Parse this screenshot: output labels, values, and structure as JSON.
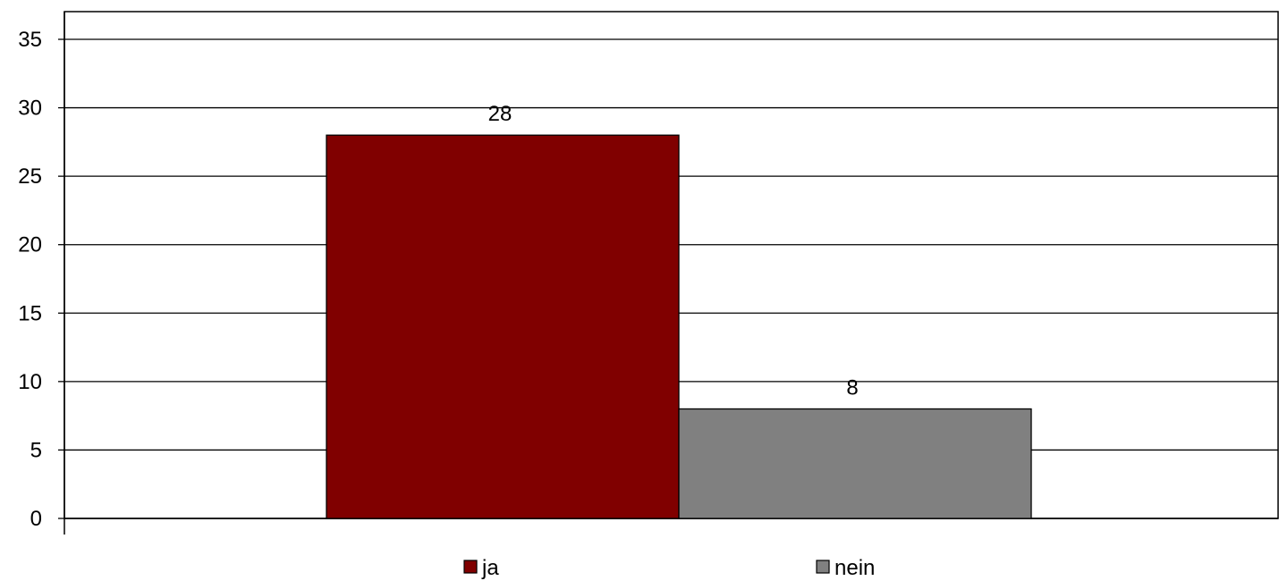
{
  "chart_data": {
    "type": "bar",
    "categories": [
      ""
    ],
    "series": [
      {
        "name": "ja",
        "values": [
          28
        ],
        "color": "#800000"
      },
      {
        "name": "nein",
        "values": [
          8
        ],
        "color": "#808080"
      }
    ],
    "data_labels": [
      "28",
      "8"
    ],
    "ylim": [
      0,
      35
    ],
    "yticks": [
      0,
      5,
      10,
      15,
      20,
      25,
      30,
      35
    ],
    "ytick_labels": [
      "0",
      "5",
      "10",
      "15",
      "20",
      "25",
      "30",
      "35"
    ],
    "grid": true,
    "legend_position": "bottom"
  }
}
